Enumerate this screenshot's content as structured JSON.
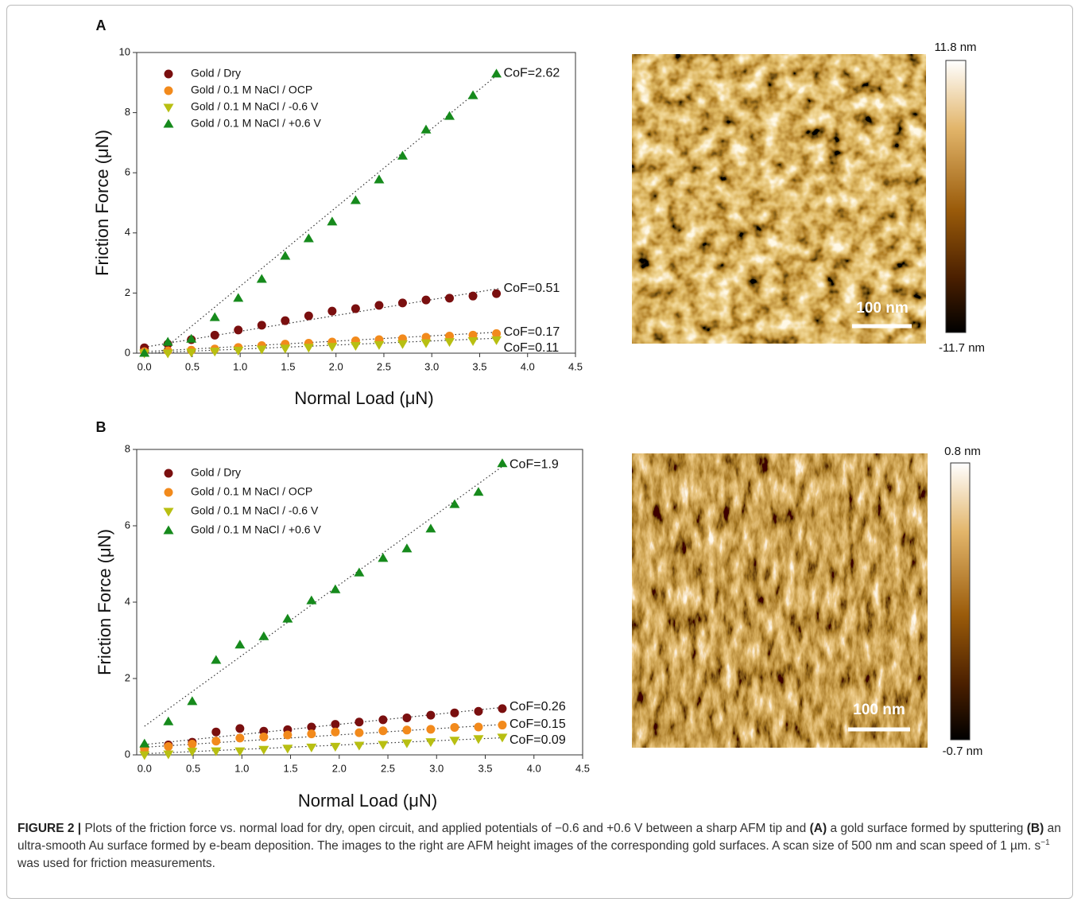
{
  "chart_data": [
    {
      "type": "scatter",
      "panel": "A",
      "x_label": "Normal Load (μN)",
      "y_label": "Friction Force (μN)",
      "xlim": [
        -0.08,
        4.5
      ],
      "ylim": [
        0,
        10
      ],
      "xticks": [
        {
          "value": 0,
          "label": "0.0"
        },
        0.5,
        {
          "value": 1,
          "label": "1.0"
        },
        1.5,
        {
          "value": 2,
          "label": "2.0"
        },
        2.5,
        {
          "value": 3,
          "label": "3.0"
        },
        3.5,
        {
          "value": 4,
          "label": "4.0"
        },
        4.5
      ],
      "yticks": [
        0,
        2,
        4,
        6,
        8,
        10
      ],
      "legend": "upper left",
      "x": [
        0,
        0.245,
        0.49,
        0.735,
        0.98,
        1.225,
        1.47,
        1.715,
        1.96,
        2.205,
        2.45,
        2.695,
        2.94,
        3.185,
        3.43,
        3.675
      ],
      "series": [
        {
          "name": "Gold / Dry",
          "color": "#7a0f0f",
          "marker": "circle",
          "annotation": "CoF=0.51",
          "values": [
            0.18,
            0.3,
            0.45,
            0.6,
            0.77,
            0.93,
            1.08,
            1.24,
            1.4,
            1.48,
            1.59,
            1.67,
            1.77,
            1.83,
            1.9,
            1.98
          ],
          "trend_x": [
            0,
            3.7
          ],
          "trend": [
            0.2,
            2.15
          ]
        },
        {
          "name": "Gold / 0.1 M NaCl / OCP",
          "color": "#f28a1c",
          "marker": "circle",
          "annotation": "CoF=0.17",
          "values": [
            0.05,
            0.08,
            0.1,
            0.14,
            0.19,
            0.25,
            0.3,
            0.33,
            0.37,
            0.41,
            0.45,
            0.48,
            0.53,
            0.57,
            0.6,
            0.65
          ],
          "trend_x": [
            0,
            3.7
          ],
          "trend": [
            0.05,
            0.7
          ]
        },
        {
          "name": "Gold / 0.1 M NaCl / -0.6 V",
          "color": "#b8bf12",
          "marker": "triangle-down",
          "annotation": "CoF=0.11",
          "values": [
            0,
            0,
            0.03,
            0.06,
            0.09,
            0.13,
            0.16,
            0.19,
            0.22,
            0.25,
            0.28,
            0.31,
            0.34,
            0.38,
            0.41,
            0.44
          ],
          "trend_x": [
            0,
            3.7
          ],
          "trend": [
            0,
            0.5
          ]
        },
        {
          "name": "Gold / 0.1 M NaCl / +0.6 V",
          "color": "#168a1c",
          "marker": "triangle-up",
          "annotation": "CoF=2.62",
          "values": [
            0,
            0.37,
            0.47,
            1.19,
            1.83,
            2.46,
            3.23,
            3.81,
            4.37,
            5.08,
            5.77,
            6.56,
            7.43,
            7.88,
            8.57,
            9.29
          ],
          "trend_x": [
            0.15,
            3.7
          ],
          "trend": [
            0,
            9.3
          ]
        }
      ],
      "image": {
        "scale_bar": "100 nm",
        "colorbar_max": "11.8 nm",
        "colorbar_min": "-11.7 nm"
      }
    },
    {
      "type": "scatter",
      "panel": "B",
      "x_label": "Normal Load (μN)",
      "y_label": "Friction Force (μN)",
      "xlim": [
        -0.08,
        4.5
      ],
      "ylim": [
        0,
        8
      ],
      "xticks": [
        {
          "value": 0,
          "label": "0.0"
        },
        0.5,
        {
          "value": 1,
          "label": "1.0"
        },
        1.5,
        {
          "value": 2,
          "label": "2.0"
        },
        2.5,
        {
          "value": 3,
          "label": "3.0"
        },
        3.5,
        {
          "value": 4,
          "label": "4.0"
        },
        4.5
      ],
      "yticks": [
        0,
        2,
        4,
        6,
        8
      ],
      "legend": "upper left",
      "x": [
        0,
        0.245,
        0.49,
        0.735,
        0.98,
        1.225,
        1.47,
        1.715,
        1.96,
        2.205,
        2.45,
        2.695,
        2.94,
        3.185,
        3.43,
        3.675
      ],
      "series": [
        {
          "name": "Gold / Dry",
          "color": "#7a0f0f",
          "marker": "circle",
          "annotation": "CoF=0.26",
          "values": [
            0.2,
            0.26,
            0.33,
            0.6,
            0.69,
            0.62,
            0.66,
            0.73,
            0.8,
            0.86,
            0.92,
            0.97,
            1.04,
            1.1,
            1.14,
            1.21
          ],
          "trend_x": [
            0,
            3.7
          ],
          "trend": [
            0.27,
            1.25
          ]
        },
        {
          "name": "Gold / 0.1 M NaCl / OCP",
          "color": "#f28a1c",
          "marker": "circle",
          "annotation": "CoF=0.15",
          "values": [
            0.15,
            0.22,
            0.28,
            0.36,
            0.44,
            0.47,
            0.52,
            0.55,
            0.6,
            0.58,
            0.63,
            0.65,
            0.67,
            0.72,
            0.73,
            0.78
          ],
          "trend_x": [
            0,
            3.7
          ],
          "trend": [
            0.2,
            0.8
          ]
        },
        {
          "name": "Gold / 0.1 M NaCl / -0.6 V",
          "color": "#b8bf12",
          "marker": "triangle-down",
          "annotation": "CoF=0.09",
          "values": [
            0,
            0.02,
            0.09,
            0.1,
            0.1,
            0.14,
            0.17,
            0.2,
            0.22,
            0.25,
            0.27,
            0.31,
            0.34,
            0.38,
            0.42,
            0.46
          ],
          "trend_x": [
            0,
            3.7
          ],
          "trend": [
            0.03,
            0.45
          ]
        },
        {
          "name": "Gold / 0.1 M NaCl / +0.6 V",
          "color": "#168a1c",
          "marker": "triangle-up",
          "annotation": "CoF=1.9",
          "values": [
            0.29,
            0.87,
            1.4,
            2.48,
            2.88,
            3.1,
            3.56,
            4.04,
            4.33,
            4.77,
            5.15,
            5.4,
            5.92,
            6.56,
            6.88,
            7.63
          ],
          "trend_x": [
            0,
            3.7
          ],
          "trend": [
            0.75,
            7.6
          ]
        }
      ],
      "image": {
        "scale_bar": "100 nm",
        "colorbar_max": "0.8 nm",
        "colorbar_min": "-0.7 nm"
      }
    }
  ],
  "caption": [
    {
      "text": "FIGURE 2 |",
      "bold": true
    },
    {
      "text": " Plots of the friction force vs. normal load for dry, open circuit, and applied potentials of −0.6 and +0.6 V between a sharp AFM tip and ",
      "bold": false
    },
    {
      "text": "(A)",
      "bold": true
    },
    {
      "text": " a gold surface formed by sputtering ",
      "bold": false
    },
    {
      "text": "(B)",
      "bold": true
    },
    {
      "text": " an ultra-smooth Au surface formed by e-beam deposition. The images to the right are AFM height images of the corresponding gold surfaces. A scan size of 500 nm and scan speed of 1 µm. s",
      "bold": false
    },
    {
      "text": "−1",
      "bold": false,
      "sup": true
    },
    {
      "text": " was used for friction measurements.",
      "bold": false
    }
  ]
}
